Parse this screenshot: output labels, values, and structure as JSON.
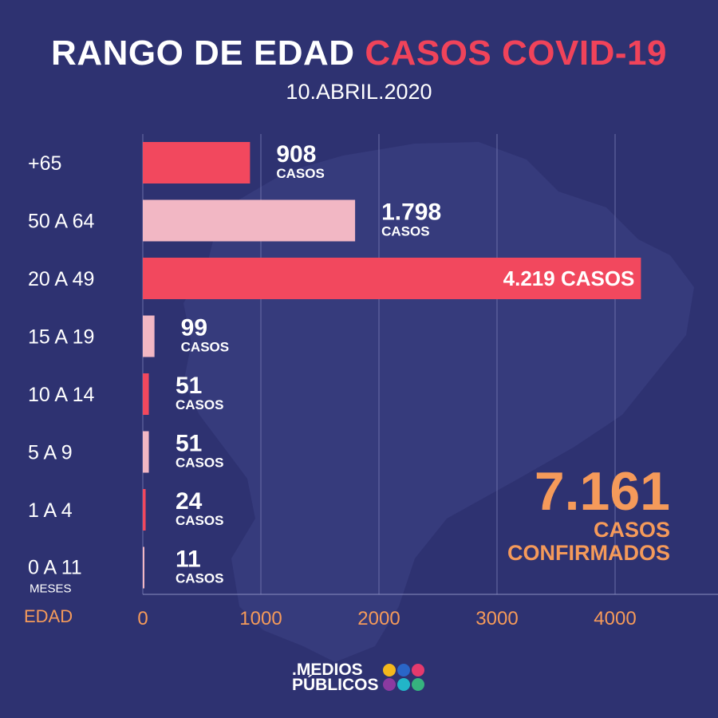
{
  "header": {
    "title_white": "RANGO DE EDAD",
    "title_red": "CASOS COVID-19",
    "date": "10.ABRIL.2020"
  },
  "chart_data": {
    "type": "bar",
    "orientation": "horizontal",
    "categories": [
      "+65",
      "50 A 64",
      "20 A 49",
      "15 A 19",
      "10 A 14",
      "5 A 9",
      "1 A 4",
      "0 A 11 MESES"
    ],
    "values": [
      908,
      1798,
      4219,
      99,
      51,
      51,
      24,
      11
    ],
    "value_labels": [
      "908",
      "1.798",
      "4.219",
      "99",
      "51",
      "51",
      "24",
      "11"
    ],
    "unit_label": "CASOS",
    "ylabel": "EDAD",
    "xlim": [
      0,
      4000
    ],
    "xticks": [
      0,
      1000,
      2000,
      3000,
      4000
    ],
    "grid": true,
    "colors": [
      "#f2485e",
      "#f2b7c4",
      "#f2485e",
      "#f2b7c4",
      "#f2485e",
      "#f2b7c4",
      "#f2485e",
      "#f2b7c4"
    ]
  },
  "total": {
    "value": "7.161",
    "label_1": "CASOS",
    "label_2": "CONFIRMADOS"
  },
  "logo": {
    "line_1": ".MEDIOS",
    "line_2": "PÚBLICOS",
    "dot_colors": [
      "#f4b81c",
      "#2a66c8",
      "#e43a6d",
      "#8b3aa0",
      "#22b5c8",
      "#36b37e"
    ]
  },
  "colors": {
    "background": "#2e3271",
    "accent_red": "#f0435a",
    "accent_orange": "#f59a5a"
  }
}
